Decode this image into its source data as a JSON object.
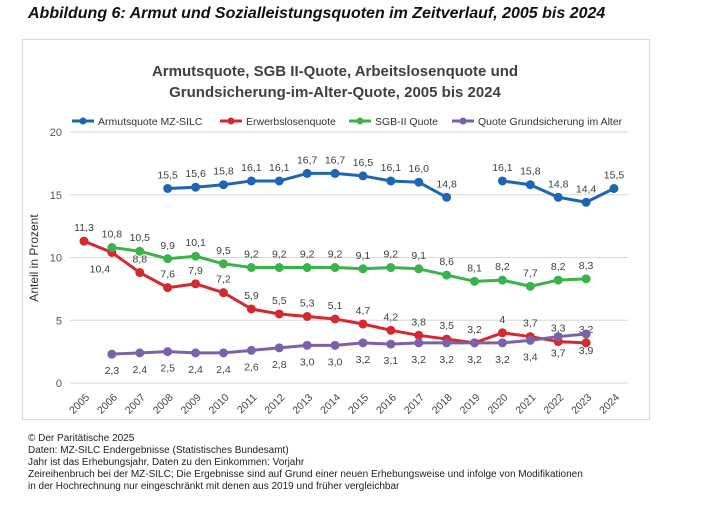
{
  "figure_title": "Abbildung 6: Armut und Sozialleistungsquoten im Zeitverlauf, 2005 bis 2024",
  "chart_data": {
    "type": "line",
    "title_lines": [
      "Armutsquote, SGB II-Quote, Arbeitslosenquote und",
      "Grundsicherung-im-Alter-Quote, 2005 bis 2024"
    ],
    "xlabel": "",
    "ylabel": "Anteil in Prozent",
    "ylim": [
      0,
      20
    ],
    "yticks": [
      "0",
      "5",
      "10",
      "15",
      "20"
    ],
    "categories": [
      "2005",
      "2006",
      "2007",
      "2008",
      "2009",
      "2010",
      "2011",
      "2012",
      "2013",
      "2014",
      "2015",
      "2016",
      "2017",
      "2018",
      "2019",
      "2020",
      "2021",
      "2022",
      "2023",
      "2024"
    ],
    "grid": true,
    "legend_position": "top",
    "series": [
      {
        "name": "Armutsquote MZ-SILC",
        "color": "#1f66b0",
        "label_pos": "above",
        "values": [
          null,
          null,
          null,
          15.5,
          15.6,
          15.8,
          16.1,
          16.1,
          16.7,
          16.7,
          16.5,
          16.1,
          16.0,
          14.8,
          null,
          16.1,
          15.8,
          14.8,
          14.4,
          15.5
        ],
        "labels": [
          null,
          null,
          null,
          "15,5",
          "15,6",
          "15,8",
          "16,1",
          "16,1",
          "16,7",
          "16,7",
          "16,5",
          "16,1",
          "16,0",
          "14,8",
          null,
          "16,1",
          "15,8",
          "14,8",
          "14,4",
          "15,5"
        ]
      },
      {
        "name": "Erwerbslosenquote",
        "color": "#d42a2f",
        "label_pos": "above",
        "values": [
          11.3,
          10.4,
          8.8,
          7.6,
          7.9,
          7.2,
          5.9,
          5.5,
          5.3,
          5.1,
          4.7,
          4.2,
          3.8,
          3.5,
          3.2,
          4,
          3.7,
          3.3,
          3.2,
          null
        ],
        "labels": [
          "11,3",
          "10,4",
          "8,8",
          "7,6",
          "7,9",
          "7,2",
          "5,9",
          "5,5",
          "5,3",
          "5,1",
          "4,7",
          "4,2",
          "3,8",
          "3,5",
          "3,2",
          "4",
          "3,7",
          "3,3",
          "3,2",
          null
        ]
      },
      {
        "name": "SGB-II Quote",
        "color": "#3cb34a",
        "label_pos": "above",
        "values": [
          null,
          10.8,
          10.5,
          9.9,
          10.1,
          9.5,
          9.2,
          9.2,
          9.2,
          9.2,
          9.1,
          9.2,
          9.1,
          8.6,
          8.1,
          8.2,
          7.7,
          8.2,
          8.3,
          null
        ],
        "labels": [
          null,
          "10,8",
          "10,5",
          "9,9",
          "10,1",
          "9,5",
          "9,2",
          "9,2",
          "9,2",
          "9,2",
          "9,1",
          "9,2",
          "9,1",
          "8,6",
          "8,1",
          "8,2",
          "7,7",
          "8,2",
          "8,3",
          null
        ]
      },
      {
        "name": "Quote Grundsicherung im Alter",
        "color": "#7b62a8",
        "label_pos": "below",
        "values": [
          null,
          2.3,
          2.4,
          2.5,
          2.4,
          2.4,
          2.6,
          2.8,
          3.0,
          3.0,
          3.2,
          3.1,
          3.2,
          3.2,
          3.2,
          3.2,
          3.4,
          3.7,
          3.9,
          null
        ],
        "labels": [
          null,
          "2,3",
          "2,4",
          "2,5",
          "2,4",
          "2,4",
          "2,6",
          "2,8",
          "3,0",
          "3,0",
          "3,2",
          "3,1",
          "3,2",
          "3,2",
          "3,2",
          "3,2",
          "3,4",
          "3,7",
          "3,9",
          null
        ]
      }
    ]
  },
  "notes": [
    "© Der Paritätische 2025",
    "Daten: MZ-SILC Endergebnisse (Statistisches Bundesamt)",
    "Jahr ist das Erhebungsjahr, Daten zu den Einkommen:   Vorjahr",
    "Zeireihenbruch bei der MZ-SILC; Die Ergebnisse sind auf Grund einer neuen Erhebungsweise und infolge von Modifikationen",
    "in der Hochrechnung nur eingeschränkt mit denen aus 2019 und früher vergleichbar"
  ]
}
